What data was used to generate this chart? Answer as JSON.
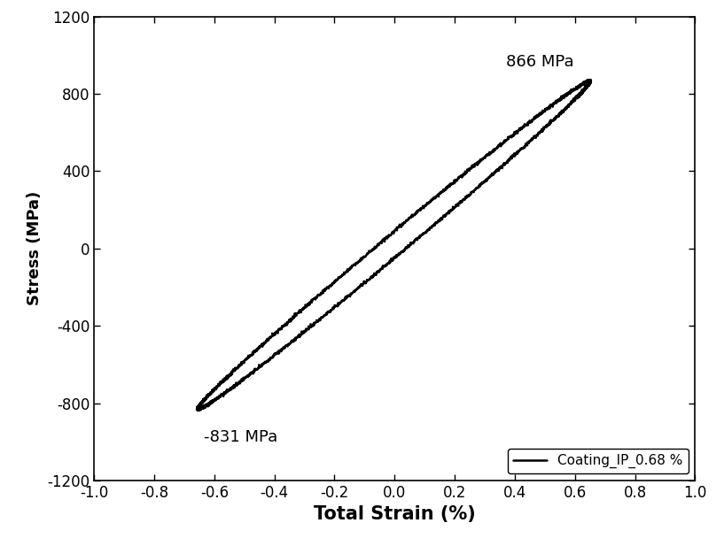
{
  "title": "",
  "xlabel": "Total Strain (%)",
  "ylabel": "Stress (MPa)",
  "xlim": [
    -1.0,
    1.0
  ],
  "ylim": [
    -1200,
    1200
  ],
  "xticks": [
    -1.0,
    -0.8,
    -0.6,
    -0.4,
    -0.2,
    0.0,
    0.2,
    0.4,
    0.6,
    0.8,
    1.0
  ],
  "yticks": [
    -1200,
    -800,
    -400,
    0,
    400,
    800,
    1200
  ],
  "max_stress": 866,
  "min_stress": -831,
  "max_strain": 0.65,
  "min_strain": -0.655,
  "annotation_max": "866 MPa",
  "annotation_min": "-831 MPa",
  "legend_label": "Coating_IP_0.68 %",
  "line_color": "#000000",
  "line_width": 1.8,
  "background_color": "#ffffff",
  "xlabel_fontsize": 15,
  "ylabel_fontsize": 13,
  "tick_fontsize": 12,
  "annotation_fontsize": 13,
  "legend_fontsize": 11,
  "minor_axis_scale": 0.038
}
